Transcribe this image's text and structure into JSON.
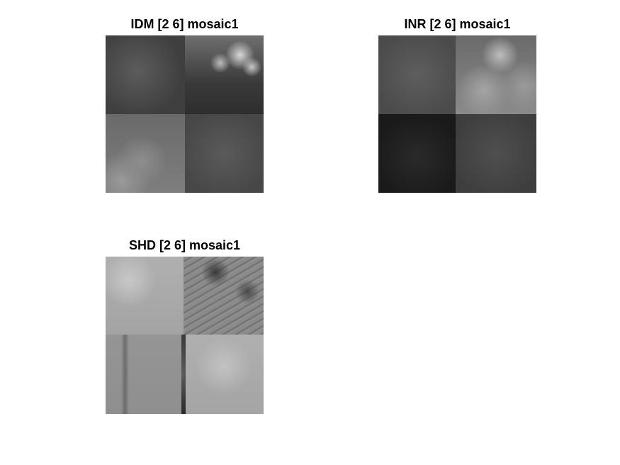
{
  "figure": {
    "panels": [
      {
        "title": "IDM [2 6] mosaic1"
      },
      {
        "title": "INR [2 6] mosaic1"
      },
      {
        "title": "SHD [2 6] mosaic1"
      }
    ]
  }
}
